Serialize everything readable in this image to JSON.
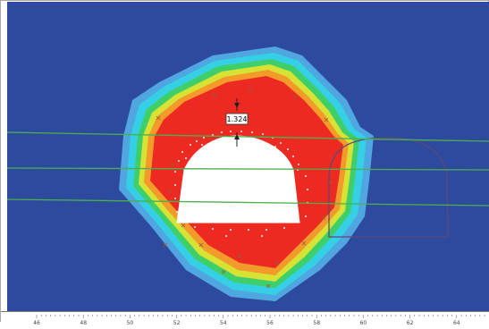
{
  "colors": {
    "background_field": "#2e4a9e",
    "contour_light_blue": "#4fa6e0",
    "contour_cyan": "#35d0e6",
    "contour_green": "#3fcf6a",
    "contour_yellow": "#d8e234",
    "contour_orange": "#f29a2a",
    "contour_red": "#ec2a22",
    "excavation_fill": "#ffffff",
    "joint_line": "#4caf50",
    "yield_marker": "#9b5a3a",
    "future_stage_outline": "#5a4a7a"
  },
  "measurement": {
    "label": "1.324"
  },
  "axis": {
    "tick_labels": [
      "46",
      "48",
      "50",
      "52",
      "54",
      "56",
      "58",
      "60",
      "62",
      "64"
    ]
  }
}
